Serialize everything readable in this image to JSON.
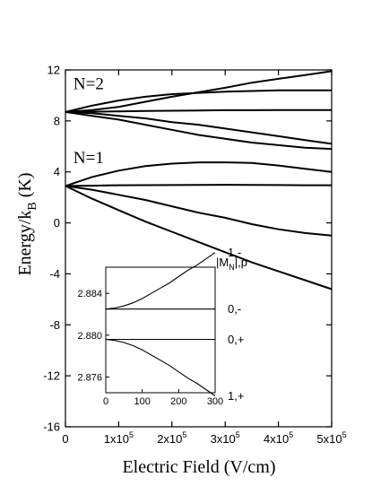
{
  "chart_data": [
    {
      "type": "line",
      "xlabel": "Electric Field (V/cm)",
      "ylabel_main": "Energy/k",
      "ylabel_sub": "B",
      "ylabel_unit": " (K)",
      "xlim": [
        0,
        500000
      ],
      "ylim": [
        -16,
        12
      ],
      "x_ticks": [
        {
          "value": 0,
          "mant": "0",
          "exp": ""
        },
        {
          "value": 100000,
          "mant": "1x10",
          "exp": "5"
        },
        {
          "value": 200000,
          "mant": "2x10",
          "exp": "5"
        },
        {
          "value": 300000,
          "mant": "3x10",
          "exp": "5"
        },
        {
          "value": 400000,
          "mant": "4x10",
          "exp": "5"
        },
        {
          "value": 500000,
          "mant": "5x10",
          "exp": "5"
        }
      ],
      "y_ticks": [
        12,
        8,
        4,
        0,
        -4,
        -8,
        -12,
        -16
      ],
      "annotations": [
        {
          "text": "N=2",
          "x": 15000,
          "y": 10.5
        },
        {
          "text": "N=1",
          "x": 15000,
          "y": 4.7
        }
      ],
      "grid": false,
      "x": [
        0,
        50000,
        100000,
        150000,
        200000,
        250000,
        300000,
        350000,
        400000,
        450000,
        500000
      ],
      "series": [
        {
          "values": [
            8.7,
            8.85,
            9.1,
            9.5,
            9.9,
            10.25,
            10.6,
            11.0,
            11.3,
            11.6,
            11.9
          ]
        },
        {
          "values": [
            8.7,
            9.2,
            9.6,
            9.9,
            10.1,
            10.2,
            10.3,
            10.35,
            10.4,
            10.4,
            10.4
          ]
        },
        {
          "values": [
            8.7,
            8.72,
            8.75,
            8.78,
            8.8,
            8.82,
            8.84,
            8.84,
            8.85,
            8.85,
            8.85
          ]
        },
        {
          "values": [
            8.7,
            8.6,
            8.4,
            8.2,
            7.9,
            7.7,
            7.4,
            7.1,
            6.8,
            6.5,
            6.2
          ]
        },
        {
          "values": [
            8.7,
            8.4,
            8.1,
            7.7,
            7.3,
            6.9,
            6.6,
            6.3,
            6.1,
            5.9,
            5.8
          ]
        },
        {
          "values": [
            2.9,
            3.6,
            4.1,
            4.45,
            4.65,
            4.75,
            4.75,
            4.7,
            4.5,
            4.25,
            4.0
          ]
        },
        {
          "values": [
            2.9,
            2.92,
            2.95,
            2.96,
            2.97,
            2.98,
            2.99,
            2.98,
            2.97,
            2.95,
            2.95
          ]
        },
        {
          "values": [
            2.9,
            2.6,
            2.2,
            1.8,
            1.3,
            0.8,
            0.4,
            -0.1,
            -0.5,
            -0.8,
            -1.0
          ]
        },
        {
          "values": [
            2.9,
            1.9,
            1.0,
            0.1,
            -0.7,
            -1.5,
            -2.3,
            -3.1,
            -3.8,
            -4.5,
            -5.2
          ]
        }
      ]
    },
    {
      "type": "line",
      "xlim": [
        0,
        300
      ],
      "ylim": [
        2.8745,
        2.8865
      ],
      "x_ticks": [
        0,
        100,
        200,
        300
      ],
      "y_ticks": [
        "2.884",
        "2.880",
        "2.876"
      ],
      "header": "|M",
      "header_sub": "N",
      "header_tail": "|,p",
      "x": [
        0,
        25,
        50,
        75,
        100,
        125,
        150,
        175,
        200,
        225,
        250,
        275,
        300
      ],
      "series": [
        {
          "name": "1,-",
          "values": [
            2.8825,
            2.8826,
            2.8828,
            2.8831,
            2.8835,
            2.884,
            2.8845,
            2.885,
            2.8856,
            2.8862,
            2.8867,
            2.8873,
            2.8879
          ]
        },
        {
          "name": "0,-",
          "values": [
            2.8825,
            2.8825,
            2.8825,
            2.8825,
            2.8825,
            2.8825,
            2.8825,
            2.8825,
            2.8825,
            2.8825,
            2.8825,
            2.8825,
            2.8825
          ]
        },
        {
          "name": "0,+",
          "values": [
            2.8796,
            2.8796,
            2.8796,
            2.8796,
            2.8796,
            2.8796,
            2.8796,
            2.8796,
            2.8796,
            2.8796,
            2.8796,
            2.8796,
            2.8796
          ]
        },
        {
          "name": "1,+",
          "values": [
            2.8796,
            2.8795,
            2.8793,
            2.879,
            2.8786,
            2.8781,
            2.8776,
            2.8771,
            2.8765,
            2.8759,
            2.8754,
            2.8748,
            2.8742
          ]
        }
      ]
    }
  ]
}
